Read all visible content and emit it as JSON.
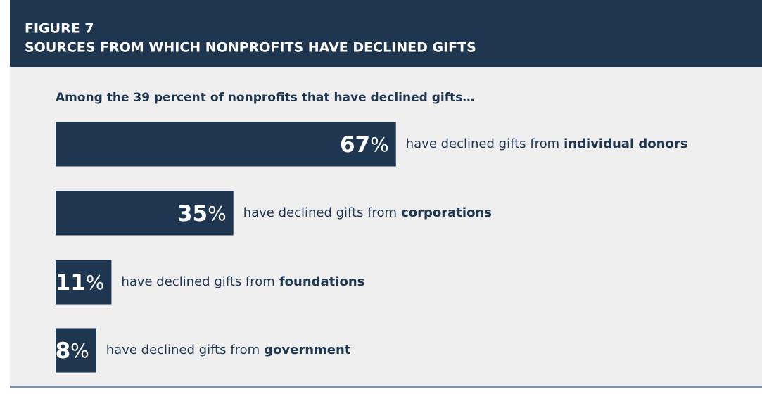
{
  "chart_data": {
    "type": "bar",
    "figure_label": "FIGURE 7",
    "title": "SOURCES FROM WHICH NONPROFITS HAVE DECLINED GIFTS",
    "subtitle": "Among the 39 percent of nonprofits that have declined gifts…",
    "category_prefix": "have declined gifts from",
    "categories": [
      "individual donors",
      "corporations",
      "foundations",
      "government"
    ],
    "values": [
      67,
      35,
      11,
      8
    ],
    "value_labels": [
      "67%",
      "35%",
      "11%",
      "8%"
    ],
    "color": "#1f3650"
  }
}
